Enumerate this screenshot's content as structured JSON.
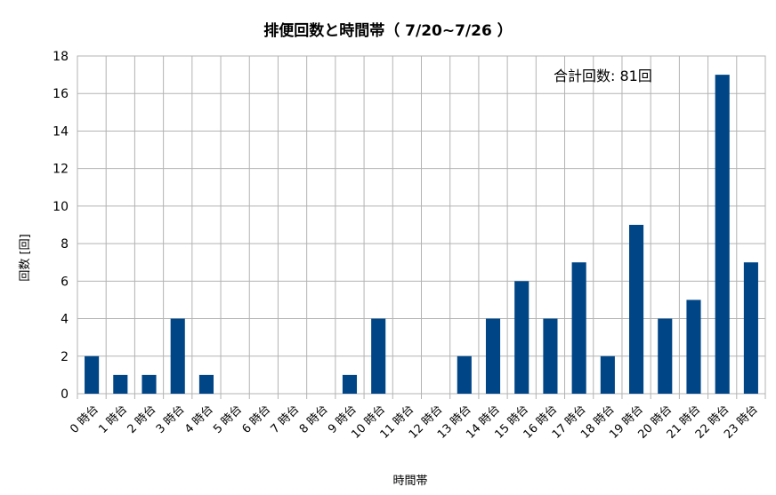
{
  "chart_data": {
    "type": "bar",
    "title": "排便回数と時間帯（ 7/20~7/26 ）",
    "xlabel": "時間帯",
    "ylabel": "回数 [回]",
    "annotation": "合計回数: 81回",
    "ylim": [
      0,
      18
    ],
    "ytick_step": 2,
    "yticks": [
      "0",
      "2",
      "4",
      "6",
      "8",
      "10",
      "12",
      "14",
      "16",
      "18"
    ],
    "grid": true,
    "legend": "none",
    "categories": [
      "0 時台",
      "1 時台",
      "2 時台",
      "3 時台",
      "4 時台",
      "5 時台",
      "6 時台",
      "7 時台",
      "8 時台",
      "9 時台",
      "10 時台",
      "11 時台",
      "12 時台",
      "13 時台",
      "14 時台",
      "15 時台",
      "16 時台",
      "17 時台",
      "18 時台",
      "19 時台",
      "20 時台",
      "21 時台",
      "22 時台",
      "23 時台"
    ],
    "values": [
      2,
      1,
      1,
      4,
      1,
      0,
      0,
      0,
      0,
      1,
      4,
      0,
      0,
      2,
      4,
      6,
      4,
      7,
      2,
      9,
      4,
      5,
      17,
      7
    ],
    "bar_color": "#004586",
    "grid_color": "#b3b3b3"
  }
}
